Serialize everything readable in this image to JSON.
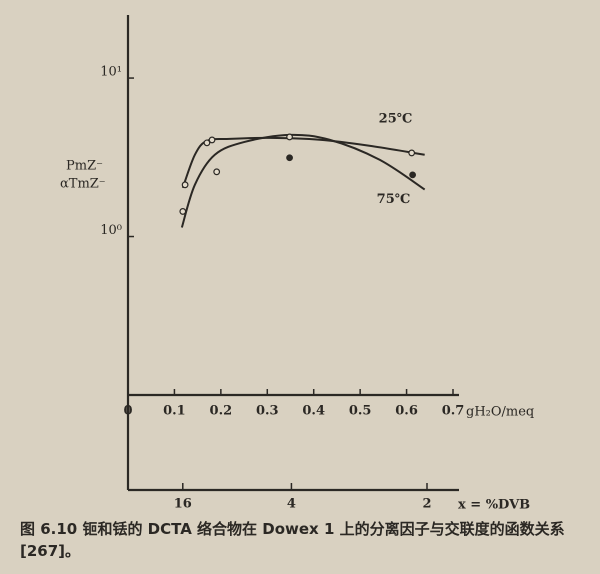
{
  "chart_data": {
    "type": "line",
    "ylabel": [
      "PmZ⁻",
      "αTmZ⁻"
    ],
    "xlabel": "gH₂O/meq",
    "x2label": "x = %DVB",
    "caption": "图 6.10  钷和铥的 DCTA 络合物在 Dowex 1 上的分离因子与交联度的函数关系[267]。",
    "log_y": true,
    "color": "#2b2824",
    "xlim": [
      0,
      0.7
    ],
    "xticks": [
      0,
      0.1,
      0.2,
      0.3,
      0.4,
      0.5,
      0.6,
      0.7
    ],
    "ylim": [
      0.1,
      25
    ],
    "yticks": [
      {
        "value": 10,
        "label": "10¹"
      },
      {
        "value": 1,
        "label": "10⁰"
      }
    ],
    "x2ticks": [
      {
        "value": 0.118,
        "label": "16"
      },
      {
        "value": 0.352,
        "label": "4"
      },
      {
        "value": 0.644,
        "label": "2"
      }
    ],
    "series": [
      {
        "name": "25℃",
        "mode": "line",
        "x": [
          0.118,
          0.144,
          0.17,
          0.219,
          0.305,
          0.413,
          0.52,
          0.639
        ],
        "values": [
          2.03,
          3.28,
          4.02,
          4.13,
          4.19,
          4.08,
          3.74,
          3.28
        ]
      },
      {
        "name": "75℃",
        "mode": "line",
        "x": [
          0.116,
          0.144,
          0.187,
          0.252,
          0.348,
          0.434,
          0.542,
          0.639
        ],
        "values": [
          1.14,
          2.12,
          3.28,
          3.96,
          4.38,
          4.08,
          3.05,
          1.98
        ]
      },
      {
        "mode": "open",
        "x": [
          0.118,
          0.123,
          0.17,
          0.181,
          0.191,
          0.348,
          0.611
        ],
        "values": [
          1.44,
          2.12,
          3.9,
          4.07,
          2.56,
          4.25,
          3.37
        ]
      },
      {
        "mode": "filled",
        "x": [
          0.348,
          0.613
        ],
        "values": [
          3.14,
          2.45
        ]
      }
    ]
  }
}
